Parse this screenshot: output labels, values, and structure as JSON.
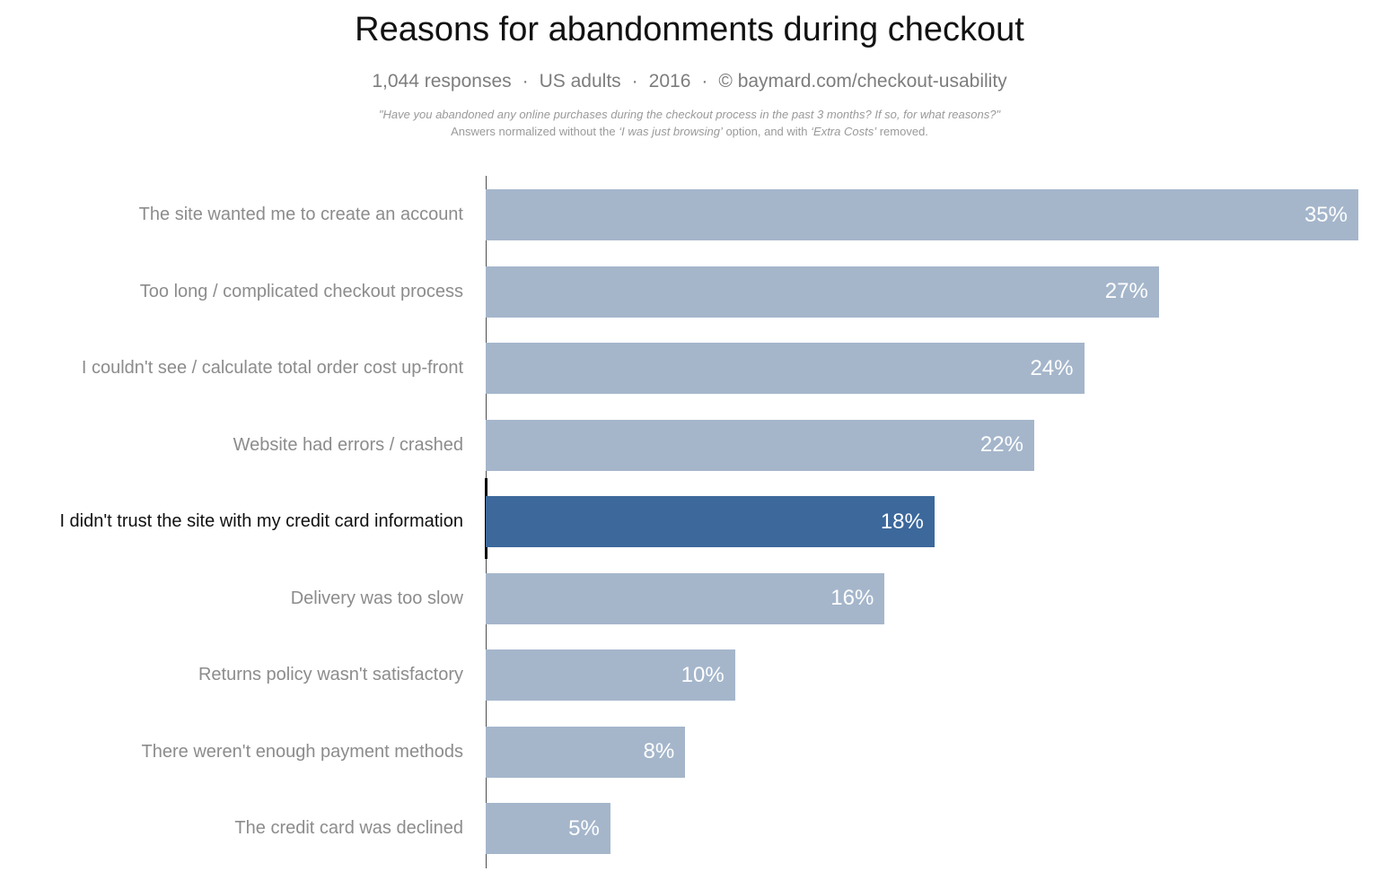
{
  "header": {
    "title": "Reasons for abandonments during checkout",
    "meta_parts": [
      "1,044 responses",
      "US adults",
      "2016",
      "© baymard.com/checkout-usability"
    ],
    "meta_separator": "·",
    "note_line1": "\"Have you abandoned any online purchases during the checkout process in the past 3 months? If so, for what reasons?\"",
    "note_line2_segments": [
      {
        "text": "Answers normalized without the ",
        "italic": false
      },
      {
        "text": "‘I was just browsing’",
        "italic": true
      },
      {
        "text": " option, and with ",
        "italic": false
      },
      {
        "text": "‘Extra Costs’",
        "italic": true
      },
      {
        "text": " removed.",
        "italic": false
      }
    ]
  },
  "chart_data": {
    "type": "bar",
    "orientation": "horizontal",
    "title": "Reasons for abandonments during checkout",
    "subtitle": "1,044 responses · US adults · 2016 · © baymard.com/checkout-usability",
    "categories": [
      "The site wanted me to create an account",
      "Too long / complicated checkout process",
      "I couldn't see / calculate total order cost up-front",
      "Website had errors / crashed",
      "I didn't trust the site with my credit card information",
      "Delivery was too slow",
      "Returns policy wasn't satisfactory",
      "There weren't enough payment methods",
      "The credit card was declined"
    ],
    "values": [
      35,
      27,
      24,
      22,
      18,
      16,
      10,
      8,
      5
    ],
    "value_labels": [
      "35%",
      "27%",
      "24%",
      "22%",
      "18%",
      "16%",
      "10%",
      "8%",
      "5%"
    ],
    "xmax": 35,
    "highlight_index": 4,
    "grid": false,
    "legend": false,
    "colors": {
      "bar": "#a5b6cb",
      "bar_highlight": "#3c689b",
      "value_text": "#ffffff",
      "label_text": "#8c8c8c",
      "label_text_highlight": "#111111",
      "axis": "#4d4d4d",
      "axis_highlight": "#000000"
    }
  }
}
